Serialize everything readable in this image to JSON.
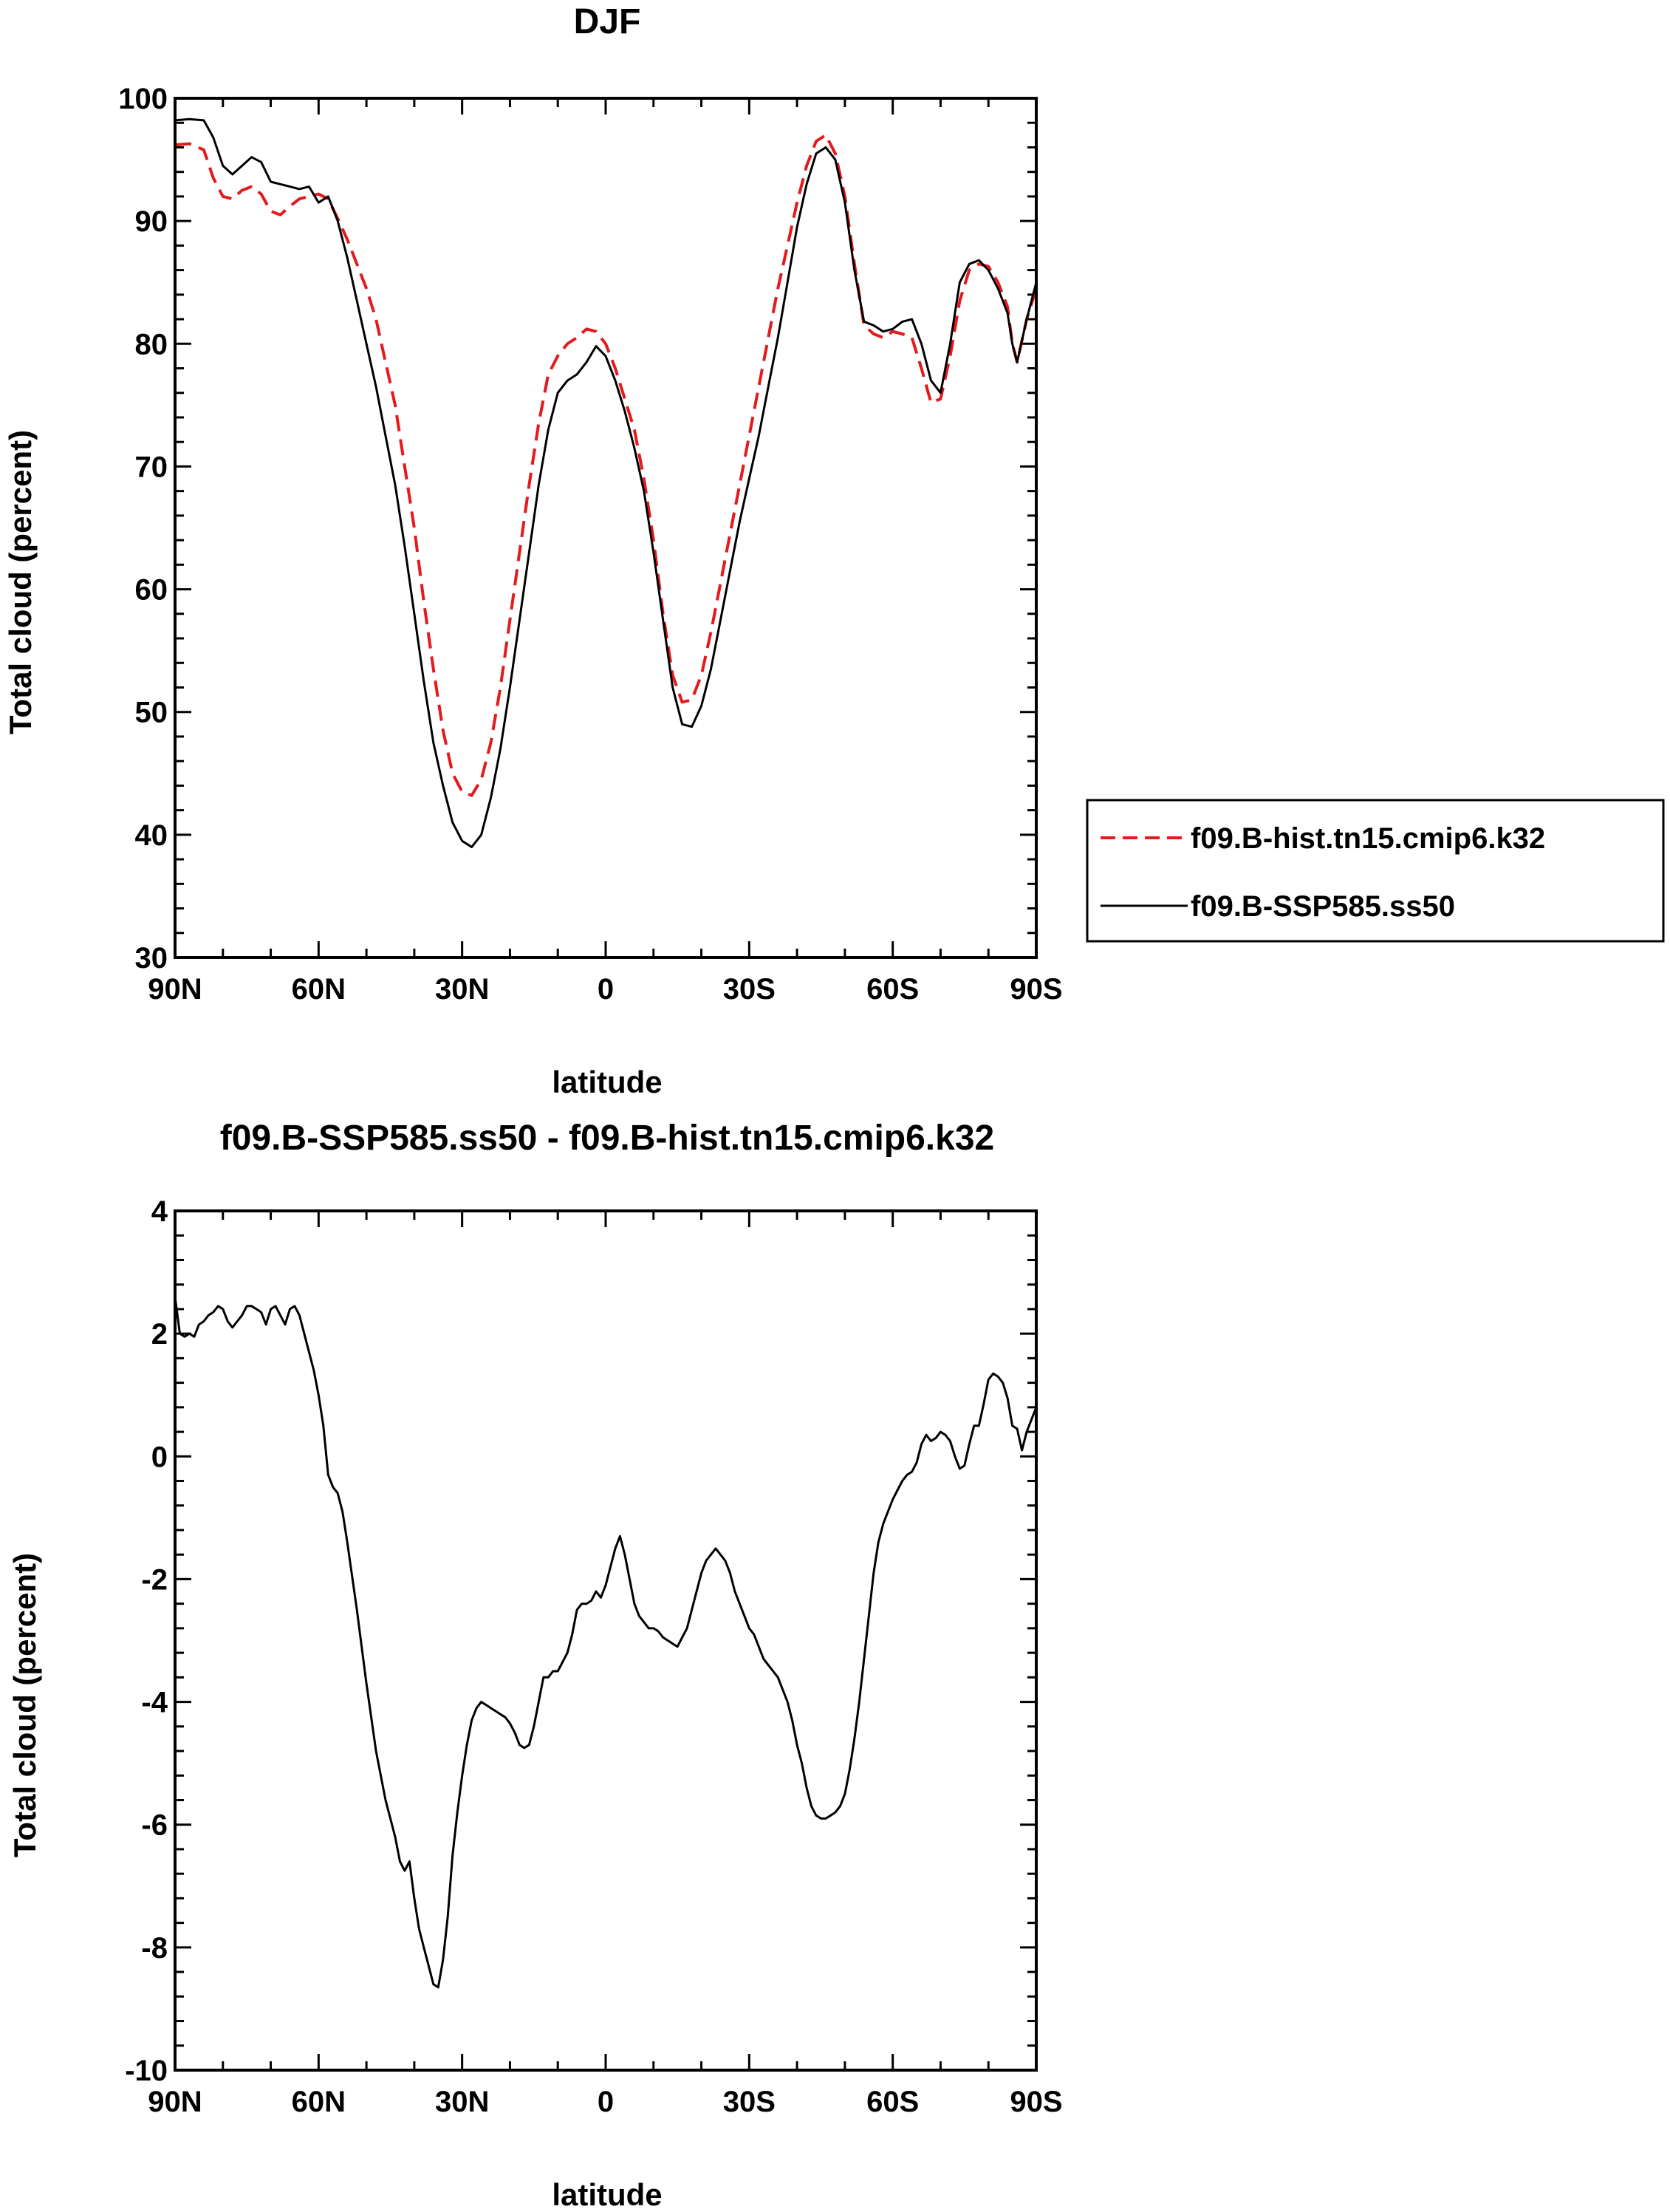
{
  "figure": {
    "colors": {
      "hist": "#e41a1c",
      "ssp": "#000000"
    }
  },
  "chart_data": [
    {
      "type": "line",
      "title": "DJF",
      "xlabel": "latitude",
      "ylabel": "Total cloud (percent)",
      "xlim": [
        90,
        -90
      ],
      "ylim": [
        30,
        100
      ],
      "x_ticks": [
        90,
        60,
        30,
        0,
        -30,
        -60,
        -90
      ],
      "x_tick_labels": [
        "90N",
        "60N",
        "30N",
        "0",
        "30S",
        "60S",
        "90S"
      ],
      "y_ticks": [
        30,
        40,
        50,
        60,
        70,
        80,
        90,
        100
      ],
      "y_tick_labels": [
        "30",
        "40",
        "50",
        "60",
        "70",
        "80",
        "90",
        "100"
      ],
      "grid": false,
      "legend": "outside-right",
      "series": [
        {
          "name": "f09.B-hist.tn15.cmip6.k32",
          "color": "#e41a1c",
          "dash": "dashed",
          "x": [
            90,
            87,
            84,
            82,
            80,
            78,
            76,
            74,
            72,
            70,
            68,
            66,
            64,
            62,
            60,
            58,
            56,
            54,
            52,
            50,
            48,
            46,
            44,
            42,
            40,
            38,
            36,
            34,
            32,
            30,
            28,
            26,
            24,
            22,
            20,
            18,
            16,
            14,
            12,
            10,
            8,
            6,
            4,
            2,
            0,
            -2,
            -4,
            -6,
            -8,
            -10,
            -12,
            -14,
            -16,
            -18,
            -20,
            -22,
            -24,
            -26,
            -28,
            -30,
            -32,
            -34,
            -36,
            -38,
            -40,
            -42,
            -44,
            -46,
            -48,
            -50,
            -52,
            -54,
            -56,
            -58,
            -60,
            -62,
            -64,
            -66,
            -68,
            -70,
            -72,
            -74,
            -76,
            -78,
            -80,
            -82,
            -84,
            -85,
            -86,
            -88,
            -90
          ],
          "y": [
            96.2,
            96.3,
            95.8,
            93.5,
            92.0,
            91.8,
            92.5,
            92.8,
            92.2,
            90.8,
            90.5,
            91.2,
            91.8,
            92.0,
            92.2,
            91.8,
            90.2,
            88.5,
            86.5,
            84.5,
            82.0,
            78.5,
            75.0,
            70.0,
            65.0,
            59.0,
            53.5,
            48.5,
            45.0,
            43.5,
            43.2,
            44.5,
            47.5,
            52.0,
            57.5,
            63.0,
            68.5,
            73.5,
            77.5,
            79.0,
            80.0,
            80.5,
            81.2,
            81.0,
            80.0,
            78.0,
            75.5,
            73.0,
            69.0,
            64.0,
            58.0,
            53.0,
            50.8,
            51.0,
            53.0,
            56.5,
            60.5,
            64.5,
            68.5,
            72.5,
            76.5,
            80.5,
            84.5,
            88.0,
            91.5,
            94.5,
            96.5,
            97.0,
            95.5,
            92.0,
            86.5,
            81.5,
            80.8,
            80.5,
            81.0,
            80.8,
            80.5,
            78.0,
            75.2,
            75.5,
            79.0,
            83.5,
            86.0,
            86.5,
            86.3,
            85.0,
            83.0,
            80.0,
            78.5,
            82.0,
            84.5
          ]
        },
        {
          "name": "f09.B-SSP585.ss50",
          "color": "#000000",
          "dash": "solid",
          "x": [
            90,
            87,
            84,
            82,
            80,
            78,
            76,
            74,
            72,
            70,
            68,
            66,
            64,
            62,
            60,
            58,
            56,
            54,
            52,
            50,
            48,
            46,
            44,
            42,
            40,
            38,
            36,
            34,
            32,
            30,
            28,
            26,
            24,
            22,
            20,
            18,
            16,
            14,
            12,
            10,
            8,
            6,
            4,
            2,
            0,
            -2,
            -4,
            -6,
            -8,
            -10,
            -12,
            -14,
            -16,
            -18,
            -20,
            -22,
            -24,
            -26,
            -28,
            -30,
            -32,
            -34,
            -36,
            -38,
            -40,
            -42,
            -44,
            -46,
            -48,
            -50,
            -52,
            -54,
            -56,
            -58,
            -60,
            -62,
            -64,
            -66,
            -68,
            -70,
            -72,
            -74,
            -76,
            -78,
            -80,
            -82,
            -84,
            -85,
            -86,
            -88,
            -90
          ],
          "y": [
            98.2,
            98.3,
            98.2,
            96.8,
            94.5,
            93.8,
            94.5,
            95.2,
            94.8,
            93.2,
            93.0,
            92.8,
            92.6,
            92.8,
            91.5,
            92.0,
            90.0,
            87.0,
            83.5,
            80.0,
            76.5,
            72.5,
            68.5,
            63.5,
            58.0,
            52.5,
            47.5,
            44.0,
            41.0,
            39.5,
            39.0,
            40.0,
            43.0,
            47.0,
            52.0,
            57.5,
            63.0,
            68.5,
            73.0,
            76.0,
            77.0,
            77.5,
            78.5,
            79.8,
            79.0,
            77.0,
            74.5,
            71.5,
            68.0,
            63.0,
            57.5,
            52.0,
            49.0,
            48.8,
            50.5,
            53.5,
            57.5,
            61.5,
            65.5,
            69.0,
            72.5,
            76.5,
            80.5,
            85.0,
            89.5,
            93.0,
            95.5,
            96.0,
            95.0,
            91.5,
            86.0,
            81.8,
            81.5,
            81.0,
            81.2,
            81.8,
            82.0,
            80.0,
            77.0,
            76.0,
            80.0,
            85.0,
            86.5,
            86.8,
            86.0,
            84.5,
            82.5,
            80.0,
            78.5,
            82.0,
            85.0
          ]
        }
      ]
    },
    {
      "type": "line",
      "title": "f09.B-SSP585.ss50 - f09.B-hist.tn15.cmip6.k32",
      "xlabel": "latitude",
      "ylabel": "Total cloud (percent)",
      "xlim": [
        90,
        -90
      ],
      "ylim": [
        -10,
        4
      ],
      "x_ticks": [
        90,
        60,
        30,
        0,
        -30,
        -60,
        -90
      ],
      "x_tick_labels": [
        "90N",
        "60N",
        "30N",
        "0",
        "30S",
        "60S",
        "90S"
      ],
      "y_ticks": [
        -10,
        -8,
        -6,
        -4,
        -2,
        0,
        2,
        4
      ],
      "y_tick_labels": [
        "-10",
        "-8",
        "-6",
        "-4",
        "-2",
        "0",
        "2",
        "4"
      ],
      "grid": false,
      "series": [
        {
          "color": "#000000",
          "dash": "solid",
          "x": [
            90,
            89,
            88,
            87,
            86,
            85,
            84,
            83,
            82,
            81,
            80,
            79,
            78,
            77,
            76,
            75,
            74,
            73,
            72,
            71,
            70,
            69,
            68,
            67,
            66,
            65,
            64,
            63,
            62,
            61,
            60,
            59,
            58,
            57,
            56,
            55,
            54,
            52,
            50,
            48,
            46,
            44,
            43,
            42,
            41,
            40,
            39,
            38,
            37,
            36,
            35,
            34,
            33,
            32,
            31,
            30,
            29,
            28,
            27,
            26,
            25,
            24,
            23,
            22,
            21,
            20,
            19,
            18,
            17,
            16,
            15,
            14,
            13,
            12,
            11,
            10,
            9,
            8,
            7,
            6,
            5,
            4,
            3,
            2,
            1,
            0,
            -1,
            -2,
            -3,
            -4,
            -5,
            -6,
            -7,
            -8,
            -9,
            -10,
            -11,
            -12,
            -13,
            -14,
            -15,
            -16,
            -17,
            -18,
            -19,
            -20,
            -21,
            -22,
            -23,
            -24,
            -25,
            -26,
            -27,
            -28,
            -29,
            -30,
            -31,
            -32,
            -33,
            -34,
            -35,
            -36,
            -37,
            -38,
            -39,
            -40,
            -41,
            -42,
            -43,
            -44,
            -45,
            -46,
            -47,
            -48,
            -49,
            -50,
            -51,
            -52,
            -53,
            -54,
            -55,
            -56,
            -57,
            -58,
            -59,
            -60,
            -61,
            -62,
            -63,
            -64,
            -65,
            -66,
            -67,
            -68,
            -69,
            -70,
            -71,
            -72,
            -73,
            -74,
            -75,
            -76,
            -77,
            -78,
            -79,
            -80,
            -81,
            -82,
            -83,
            -84,
            -85,
            -86,
            -87,
            -88,
            -89,
            -90
          ],
          "y": [
            2.6,
            2.0,
            1.95,
            2.0,
            1.95,
            2.15,
            2.2,
            2.3,
            2.35,
            2.45,
            2.4,
            2.2,
            2.1,
            2.2,
            2.3,
            2.45,
            2.45,
            2.4,
            2.35,
            2.15,
            2.4,
            2.45,
            2.3,
            2.15,
            2.4,
            2.45,
            2.3,
            2.0,
            1.7,
            1.4,
            1.0,
            0.5,
            -0.3,
            -0.5,
            -0.6,
            -0.9,
            -1.4,
            -2.5,
            -3.7,
            -4.8,
            -5.6,
            -6.2,
            -6.6,
            -6.75,
            -6.6,
            -7.2,
            -7.7,
            -8.0,
            -8.3,
            -8.6,
            -8.65,
            -8.2,
            -7.5,
            -6.5,
            -5.8,
            -5.2,
            -4.7,
            -4.3,
            -4.1,
            -4.0,
            -4.05,
            -4.1,
            -4.15,
            -4.2,
            -4.25,
            -4.35,
            -4.5,
            -4.7,
            -4.75,
            -4.7,
            -4.4,
            -4.0,
            -3.6,
            -3.6,
            -3.5,
            -3.5,
            -3.35,
            -3.2,
            -2.9,
            -2.5,
            -2.4,
            -2.4,
            -2.35,
            -2.2,
            -2.3,
            -2.1,
            -1.8,
            -1.5,
            -1.3,
            -1.6,
            -2.0,
            -2.4,
            -2.6,
            -2.7,
            -2.8,
            -2.8,
            -2.85,
            -2.95,
            -3.0,
            -3.05,
            -3.1,
            -2.95,
            -2.8,
            -2.5,
            -2.2,
            -1.9,
            -1.7,
            -1.6,
            -1.5,
            -1.6,
            -1.7,
            -1.9,
            -2.2,
            -2.4,
            -2.6,
            -2.8,
            -2.9,
            -3.1,
            -3.3,
            -3.4,
            -3.5,
            -3.6,
            -3.8,
            -4.0,
            -4.3,
            -4.7,
            -5.0,
            -5.4,
            -5.7,
            -5.85,
            -5.9,
            -5.9,
            -5.85,
            -5.8,
            -5.7,
            -5.5,
            -5.1,
            -4.6,
            -4.0,
            -3.3,
            -2.6,
            -1.9,
            -1.4,
            -1.1,
            -0.9,
            -0.7,
            -0.55,
            -0.4,
            -0.3,
            -0.25,
            -0.1,
            0.2,
            0.35,
            0.25,
            0.3,
            0.4,
            0.35,
            0.25,
            0.0,
            -0.2,
            -0.15,
            0.2,
            0.5,
            0.5,
            0.85,
            1.25,
            1.35,
            1.3,
            1.2,
            0.95,
            0.5,
            0.45,
            0.1,
            0.4,
            0.6,
            0.8
          ]
        }
      ]
    }
  ]
}
